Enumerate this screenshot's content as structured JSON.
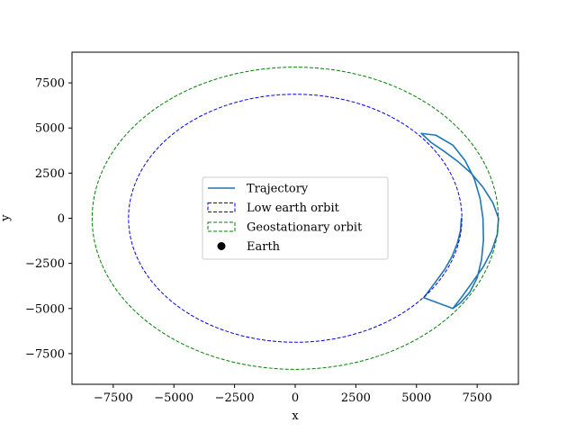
{
  "chart_data": {
    "type": "line",
    "title": "",
    "xlabel": "x",
    "ylabel": "y",
    "xlim": [
      -9200,
      9200
    ],
    "ylim": [
      -9200,
      9200
    ],
    "xticks": [
      -7500,
      -5000,
      -2500,
      0,
      2500,
      5000,
      7500
    ],
    "yticks": [
      -7500,
      -5000,
      -2500,
      0,
      2500,
      5000,
      7500
    ],
    "xtick_labels": [
      "−7500",
      "−5000",
      "−2500",
      "0",
      "2500",
      "5000",
      "7500"
    ],
    "ytick_labels": [
      "−7500",
      "−5000",
      "−2500",
      "0",
      "2500",
      "5000",
      "7500"
    ],
    "grid": false,
    "legend_position": "center",
    "series": [
      {
        "name": "Trajectory",
        "type": "line",
        "color": "#1f77b4",
        "style": "solid",
        "points": [
          [
            6850,
            0
          ],
          [
            6810,
            -700
          ],
          [
            6680,
            -1400
          ],
          [
            6470,
            -2100
          ],
          [
            6180,
            -2800
          ],
          [
            5800,
            -3500
          ],
          [
            5300,
            -4400
          ],
          [
            6500,
            -5000
          ],
          [
            6800,
            -4700
          ],
          [
            7200,
            -4100
          ],
          [
            7500,
            -3300
          ],
          [
            7680,
            -2300
          ],
          [
            7760,
            -1200
          ],
          [
            7740,
            0
          ],
          [
            7620,
            1100
          ],
          [
            7380,
            2200
          ],
          [
            7000,
            3200
          ],
          [
            6500,
            4050
          ],
          [
            5800,
            4600
          ],
          [
            5200,
            4700
          ],
          [
            5600,
            4200
          ],
          [
            6150,
            3700
          ],
          [
            6700,
            3150
          ],
          [
            7250,
            2500
          ],
          [
            7750,
            1700
          ],
          [
            8150,
            850
          ],
          [
            8380,
            0
          ],
          [
            8330,
            -900
          ],
          [
            8100,
            -1800
          ],
          [
            7750,
            -2700
          ],
          [
            7300,
            -3550
          ],
          [
            6900,
            -4300
          ],
          [
            6500,
            -5000
          ]
        ]
      },
      {
        "name": "Low earth orbit",
        "type": "circle",
        "color": "#0000ff",
        "style": "dashed",
        "center": [
          0,
          0
        ],
        "radius": 6870
      },
      {
        "name": "Geostationary orbit",
        "type": "circle",
        "color": "#008000",
        "style": "dashed",
        "center": [
          0,
          0
        ],
        "radius": 8370
      },
      {
        "name": "Earth",
        "type": "scatter",
        "color": "#000000",
        "points": [
          [
            0,
            0
          ]
        ]
      }
    ]
  }
}
